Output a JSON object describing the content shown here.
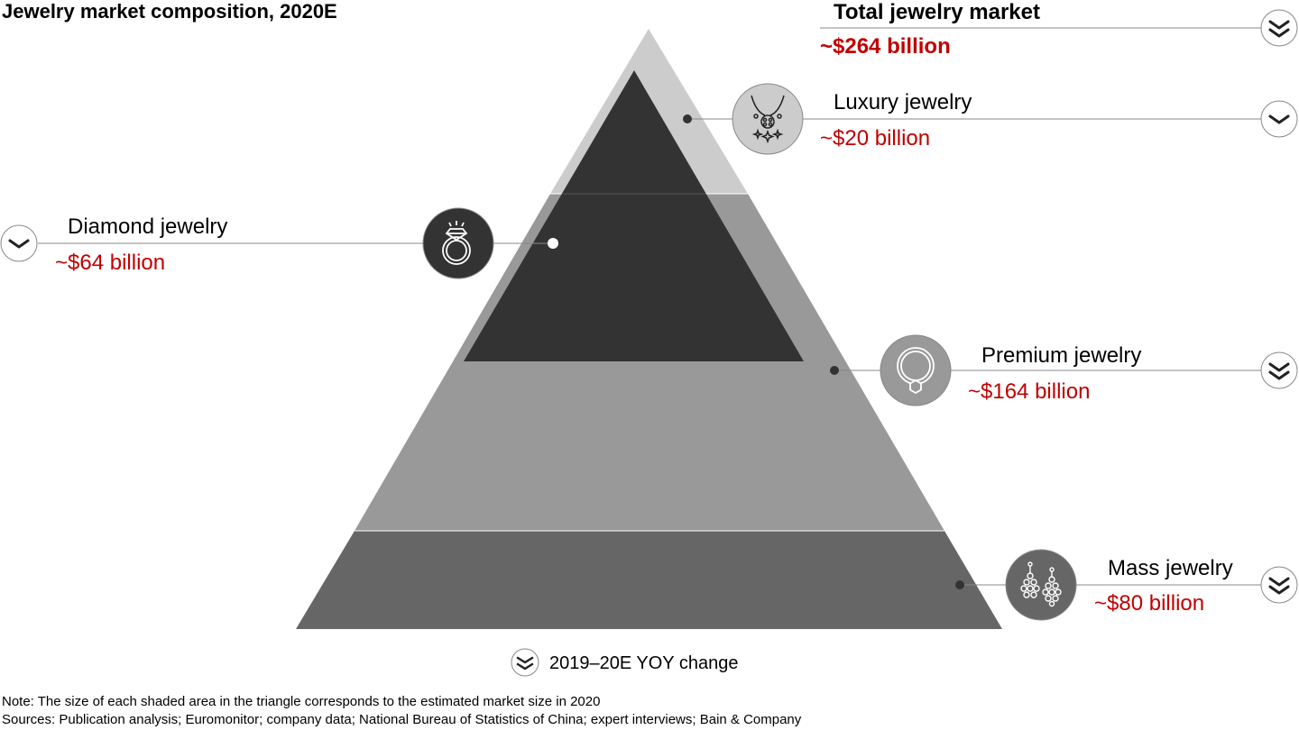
{
  "title": "Jewelry market composition, 2020E",
  "segments": [
    {
      "key": "total",
      "name": "Total jewelry market",
      "value": "~$264 billion",
      "icon": "double-chevron-down-icon",
      "trend": "double-down"
    },
    {
      "key": "luxury",
      "name": "Luxury jewelry",
      "value": "~$20 billion",
      "icon": "necklace-icon",
      "trend": "down"
    },
    {
      "key": "diamond",
      "name": "Diamond jewelry",
      "value": "~$64 billion",
      "icon": "diamond-ring-icon",
      "trend": "down"
    },
    {
      "key": "premium",
      "name": "Premium jewelry",
      "value": "~$164 billion",
      "icon": "bangle-icon",
      "trend": "double-down"
    },
    {
      "key": "mass",
      "name": "Mass jewelry",
      "value": "~$80 billion",
      "icon": "earrings-icon",
      "trend": "double-down"
    }
  ],
  "legend": {
    "label": "2019–20E YOY change",
    "icon": "double-chevron-down-icon"
  },
  "note": "Note: The size of each shaded area in the triangle corresponds to the estimated market size in 2020",
  "sources": "Sources: Publication analysis; Euromonitor; company data; National Bureau of Statistics of China; expert interviews; Bain & Company",
  "colors": {
    "luxury": "#cccccc",
    "premium": "#999999",
    "mass": "#666666",
    "diamond": "#333333",
    "accent": "#c00000",
    "line": "#888888"
  }
}
